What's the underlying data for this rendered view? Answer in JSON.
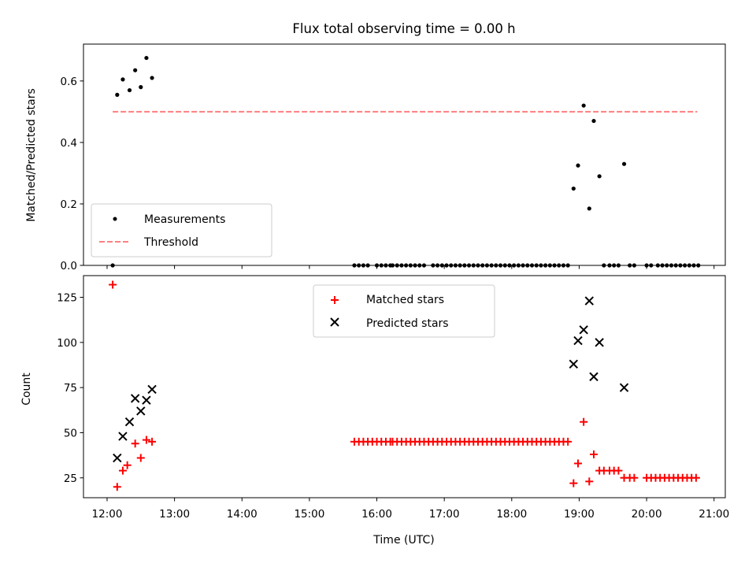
{
  "chart_data": {
    "type": "scatter",
    "title": "Flux total observing time = 0.00 h",
    "xlabel": "Time (UTC)",
    "xlim": [
      "11:39",
      "21:10"
    ],
    "xticks": [
      "12:00",
      "13:00",
      "14:00",
      "15:00",
      "16:00",
      "17:00",
      "18:00",
      "19:00",
      "20:00",
      "21:00"
    ],
    "colors": {
      "measurement": "#000000",
      "threshold": "#ff7f7f",
      "matched": "#ff0000",
      "predicted": "#000000",
      "frame": "#000000"
    },
    "top": {
      "ylabel": "Matched/Predicted stars",
      "ylim": [
        0,
        0.72
      ],
      "yticks": [
        "0.0",
        "0.2",
        "0.4",
        "0.6"
      ],
      "legend": {
        "placement": "lower-left",
        "entries": [
          "Measurements",
          "Threshold"
        ]
      },
      "threshold": {
        "name": "Threshold",
        "value": 0.5,
        "x_start": "12:05",
        "x_end": "20:45"
      },
      "measurements": [
        [
          "12:05",
          0
        ],
        [
          "12:09",
          0.555
        ],
        [
          "12:14",
          0.605
        ],
        [
          "12:20",
          0.57
        ],
        [
          "12:25",
          0.635
        ],
        [
          "12:30",
          0.58
        ],
        [
          "12:35",
          0.675
        ],
        [
          "12:40",
          0.61
        ],
        [
          "15:40",
          0
        ],
        [
          "15:44",
          0
        ],
        [
          "15:48",
          0
        ],
        [
          "15:52",
          0
        ],
        [
          "16:00",
          0
        ],
        [
          "16:04",
          0
        ],
        [
          "16:08",
          0
        ],
        [
          "16:12",
          0
        ],
        [
          "16:14",
          0
        ],
        [
          "16:18",
          0
        ],
        [
          "16:22",
          0
        ],
        [
          "16:26",
          0
        ],
        [
          "16:30",
          0
        ],
        [
          "16:34",
          0
        ],
        [
          "16:38",
          0
        ],
        [
          "16:42",
          0
        ],
        [
          "16:50",
          0
        ],
        [
          "16:54",
          0
        ],
        [
          "16:58",
          0
        ],
        [
          "17:02",
          0
        ],
        [
          "17:06",
          0
        ],
        [
          "17:10",
          0
        ],
        [
          "17:14",
          0
        ],
        [
          "17:18",
          0
        ],
        [
          "17:22",
          0
        ],
        [
          "17:26",
          0
        ],
        [
          "17:30",
          0
        ],
        [
          "17:34",
          0
        ],
        [
          "17:38",
          0
        ],
        [
          "17:42",
          0
        ],
        [
          "17:46",
          0
        ],
        [
          "17:50",
          0
        ],
        [
          "17:54",
          0
        ],
        [
          "17:58",
          0
        ],
        [
          "18:02",
          0
        ],
        [
          "18:06",
          0
        ],
        [
          "18:10",
          0
        ],
        [
          "18:14",
          0
        ],
        [
          "18:18",
          0
        ],
        [
          "18:22",
          0
        ],
        [
          "18:26",
          0
        ],
        [
          "18:30",
          0
        ],
        [
          "18:34",
          0
        ],
        [
          "18:38",
          0
        ],
        [
          "18:42",
          0
        ],
        [
          "18:46",
          0
        ],
        [
          "18:50",
          0
        ],
        [
          "18:55",
          0.25
        ],
        [
          "18:59",
          0.325
        ],
        [
          "19:04",
          0.52
        ],
        [
          "19:09",
          0.185
        ],
        [
          "19:13",
          0.47
        ],
        [
          "19:18",
          0.29
        ],
        [
          "19:22",
          0
        ],
        [
          "19:27",
          0
        ],
        [
          "19:31",
          0
        ],
        [
          "19:35",
          0
        ],
        [
          "19:40",
          0.33
        ],
        [
          "19:45",
          0
        ],
        [
          "19:49",
          0
        ],
        [
          "20:00",
          0
        ],
        [
          "20:04",
          0
        ],
        [
          "20:10",
          0
        ],
        [
          "20:14",
          0
        ],
        [
          "20:18",
          0
        ],
        [
          "20:22",
          0
        ],
        [
          "20:26",
          0
        ],
        [
          "20:30",
          0
        ],
        [
          "20:34",
          0
        ],
        [
          "20:38",
          0
        ],
        [
          "20:42",
          0
        ],
        [
          "20:46",
          0
        ]
      ]
    },
    "bottom": {
      "ylabel": "Count",
      "ylim": [
        14,
        137
      ],
      "yticks": [
        "25",
        "50",
        "75",
        "100",
        "125"
      ],
      "legend": {
        "placement": "upper-center",
        "entries": [
          "Matched stars",
          "Predicted stars"
        ]
      },
      "matched": [
        [
          "12:05",
          132
        ],
        [
          "12:09",
          20
        ],
        [
          "12:14",
          29
        ],
        [
          "12:18",
          32
        ],
        [
          "12:25",
          44
        ],
        [
          "12:30",
          36
        ],
        [
          "12:35",
          46
        ],
        [
          "12:40",
          45
        ],
        [
          "15:40",
          45
        ],
        [
          "15:44",
          45
        ],
        [
          "15:48",
          45
        ],
        [
          "15:52",
          45
        ],
        [
          "15:56",
          45
        ],
        [
          "16:00",
          45
        ],
        [
          "16:04",
          45
        ],
        [
          "16:08",
          45
        ],
        [
          "16:12",
          45
        ],
        [
          "16:14",
          45
        ],
        [
          "16:18",
          45
        ],
        [
          "16:22",
          45
        ],
        [
          "16:26",
          45
        ],
        [
          "16:30",
          45
        ],
        [
          "16:34",
          45
        ],
        [
          "16:38",
          45
        ],
        [
          "16:42",
          45
        ],
        [
          "16:46",
          45
        ],
        [
          "16:50",
          45
        ],
        [
          "16:54",
          45
        ],
        [
          "16:58",
          45
        ],
        [
          "17:02",
          45
        ],
        [
          "17:06",
          45
        ],
        [
          "17:10",
          45
        ],
        [
          "17:14",
          45
        ],
        [
          "17:18",
          45
        ],
        [
          "17:22",
          45
        ],
        [
          "17:26",
          45
        ],
        [
          "17:30",
          45
        ],
        [
          "17:34",
          45
        ],
        [
          "17:38",
          45
        ],
        [
          "17:42",
          45
        ],
        [
          "17:46",
          45
        ],
        [
          "17:50",
          45
        ],
        [
          "17:54",
          45
        ],
        [
          "17:58",
          45
        ],
        [
          "18:02",
          45
        ],
        [
          "18:06",
          45
        ],
        [
          "18:10",
          45
        ],
        [
          "18:14",
          45
        ],
        [
          "18:18",
          45
        ],
        [
          "18:22",
          45
        ],
        [
          "18:26",
          45
        ],
        [
          "18:30",
          45
        ],
        [
          "18:34",
          45
        ],
        [
          "18:38",
          45
        ],
        [
          "18:42",
          45
        ],
        [
          "18:46",
          45
        ],
        [
          "18:50",
          45
        ],
        [
          "18:55",
          22
        ],
        [
          "18:59",
          33
        ],
        [
          "19:04",
          56
        ],
        [
          "19:09",
          23
        ],
        [
          "19:13",
          38
        ],
        [
          "19:18",
          29
        ],
        [
          "19:22",
          29
        ],
        [
          "19:27",
          29
        ],
        [
          "19:31",
          29
        ],
        [
          "19:35",
          29
        ],
        [
          "19:40",
          25
        ],
        [
          "19:45",
          25
        ],
        [
          "19:49",
          25
        ],
        [
          "20:00",
          25
        ],
        [
          "20:04",
          25
        ],
        [
          "20:08",
          25
        ],
        [
          "20:12",
          25
        ],
        [
          "20:16",
          25
        ],
        [
          "20:20",
          25
        ],
        [
          "20:24",
          25
        ],
        [
          "20:28",
          25
        ],
        [
          "20:32",
          25
        ],
        [
          "20:36",
          25
        ],
        [
          "20:40",
          25
        ],
        [
          "20:44",
          25
        ]
      ],
      "predicted": [
        [
          "12:09",
          36
        ],
        [
          "12:14",
          48
        ],
        [
          "12:20",
          56
        ],
        [
          "12:25",
          69
        ],
        [
          "12:30",
          62
        ],
        [
          "12:35",
          68
        ],
        [
          "12:40",
          74
        ],
        [
          "18:55",
          88
        ],
        [
          "18:59",
          101
        ],
        [
          "19:04",
          107
        ],
        [
          "19:09",
          123
        ],
        [
          "19:13",
          81
        ],
        [
          "19:18",
          100
        ],
        [
          "19:40",
          75
        ]
      ]
    }
  }
}
